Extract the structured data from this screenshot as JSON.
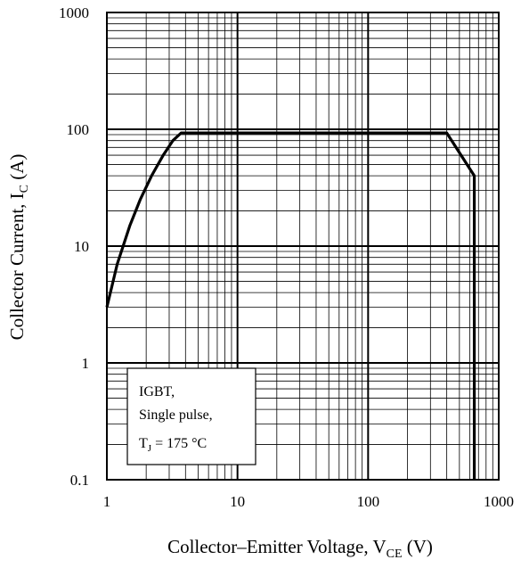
{
  "chart_data": {
    "type": "line",
    "title": "",
    "xlabel": "Collector–Emitter Voltage, V",
    "xlabel_sub": "CE",
    "xlabel_unit": " (V)",
    "ylabel": "Collector Current, I",
    "ylabel_sub": "C",
    "ylabel_unit": " (A)",
    "xscale": "log",
    "yscale": "log",
    "xlim": [
      1,
      1000
    ],
    "ylim": [
      0.1,
      1000
    ],
    "x_ticks": [
      "1",
      "10",
      "100",
      "1000"
    ],
    "y_ticks": [
      "0.1",
      "1",
      "10",
      "100",
      "1000"
    ],
    "grid": true,
    "series": [
      {
        "x": [
          1,
          1.2,
          1.5,
          1.8,
          2.2,
          2.7,
          3.2,
          3.7,
          10,
          100,
          400,
          650,
          650
        ],
        "y": [
          3,
          7,
          15,
          25,
          40,
          60,
          80,
          93,
          93,
          93,
          93,
          40,
          0.1
        ],
        "color": "#000000"
      }
    ],
    "annotation": {
      "line1": "IGBT,",
      "line2": "Single pulse,",
      "line3_prefix": "T",
      "line3_sub": "J",
      "line3_suffix": " = 175 °C"
    }
  }
}
